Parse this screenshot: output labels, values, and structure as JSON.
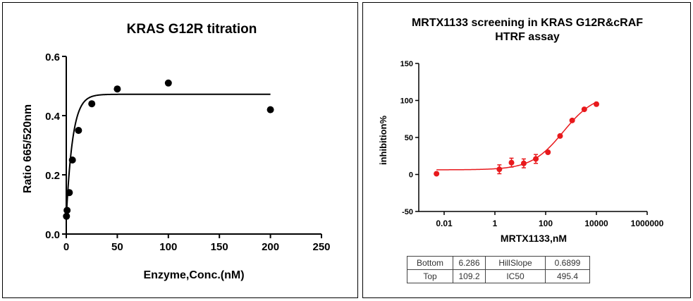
{
  "chart_data": [
    {
      "type": "scatter",
      "title": "KRAS G12R titration",
      "xlabel": "Enzyme,Conc.(nM)",
      "ylabel": "Ratio 665/520nm",
      "xlim": [
        0,
        250
      ],
      "ylim": [
        0,
        0.6
      ],
      "x_ticks": [
        0,
        50,
        100,
        150,
        200,
        250
      ],
      "y_ticks": [
        0.0,
        0.2,
        0.4,
        0.6
      ],
      "x_tick_labels": [
        "0",
        "50",
        "100",
        "150",
        "200",
        "250"
      ],
      "y_tick_labels": [
        "0.0",
        "0.2",
        "0.4",
        "0.6"
      ],
      "series": [
        {
          "name": "data",
          "x": [
            0.2,
            0.8,
            3,
            6,
            12,
            25,
            50,
            100,
            200
          ],
          "y": [
            0.06,
            0.08,
            0.14,
            0.25,
            0.35,
            0.44,
            0.49,
            0.51,
            0.42
          ]
        }
      ],
      "fit": {
        "model": "one-phase association",
        "plateau": 0.472,
        "y0": 0.055,
        "k": 0.16,
        "x_range": [
          0,
          200
        ]
      },
      "colors": {
        "points": "#000000",
        "line": "#000000"
      }
    },
    {
      "type": "scatter",
      "title": "MRTX1133 screening in KRAS G12R&cRAF",
      "subtitle": "HTRF assay",
      "xlabel": "MRTX1133,nM",
      "ylabel": "inhibition%",
      "x_scale": "log",
      "xlim": [
        0.001,
        1000000
      ],
      "ylim": [
        -50,
        150
      ],
      "x_ticks": [
        0.01,
        1,
        100,
        10000,
        1000000
      ],
      "y_ticks": [
        -50,
        0,
        50,
        100,
        150
      ],
      "x_tick_labels": [
        "0.01",
        "1",
        "100",
        "10000",
        "1000000"
      ],
      "y_tick_labels": [
        "-50",
        "0",
        "50",
        "100",
        "150"
      ],
      "series": [
        {
          "name": "MRTX1133",
          "x": [
            0.005,
            1.5,
            4.5,
            13.7,
            41,
            123,
            370,
            1110,
            3330,
            10000
          ],
          "y": [
            1,
            7,
            16,
            15,
            21,
            30,
            52,
            73,
            88,
            95
          ],
          "error": [
            0,
            6,
            6,
            6,
            6,
            0,
            0,
            0,
            0,
            0
          ]
        }
      ],
      "fit": {
        "model": "4PL",
        "bottom": 6.286,
        "top": 109.2,
        "ic50": 495.4,
        "hillslope": 0.6899,
        "x_range": [
          0.005,
          10000
        ]
      },
      "colors": {
        "points": "#e8191c",
        "line": "#e8191c"
      },
      "parameters_table": [
        [
          "Bottom",
          "6.286",
          "HillSlope",
          "0.6899"
        ],
        [
          "Top",
          "109.2",
          "IC50",
          "495.4"
        ]
      ]
    }
  ]
}
